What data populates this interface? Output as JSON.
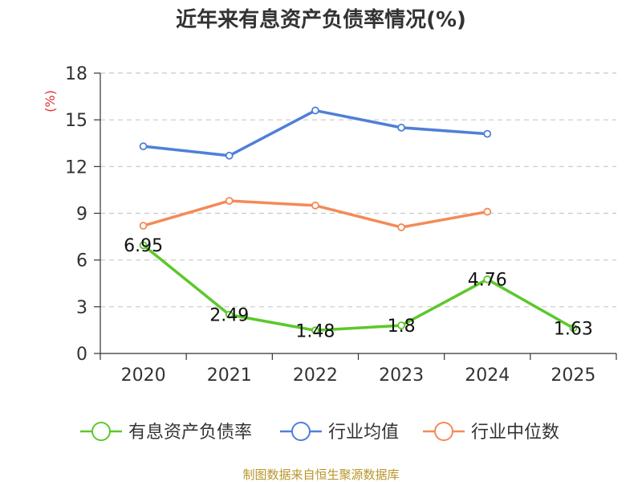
{
  "chart_data": {
    "type": "line",
    "title": "近年来有息资产负债率情况(%)",
    "ylabel": "(%)",
    "categories": [
      "2020",
      "2021",
      "2022",
      "2023",
      "2024",
      "2025"
    ],
    "ylim": [
      0,
      18
    ],
    "yticks": [
      "0",
      "3",
      "6",
      "9",
      "12",
      "15",
      "18"
    ],
    "grid": true,
    "legend_position": "bottom",
    "series": [
      {
        "name": "有息资产负债率",
        "color": "#5cc82a",
        "values": [
          6.95,
          2.49,
          1.48,
          1.8,
          4.76,
          1.63
        ],
        "labels": [
          "6.95",
          "2.49",
          "1.48",
          "1.8",
          "4.76",
          "1.63"
        ]
      },
      {
        "name": "行业均值",
        "color": "#4f7fd8",
        "values": [
          13.3,
          12.7,
          15.6,
          14.5,
          14.1,
          null
        ]
      },
      {
        "name": "行业中位数",
        "color": "#f48a58",
        "values": [
          8.2,
          9.8,
          9.5,
          8.1,
          9.1,
          null
        ]
      }
    ],
    "source": "制图数据来自恒生聚源数据库"
  }
}
